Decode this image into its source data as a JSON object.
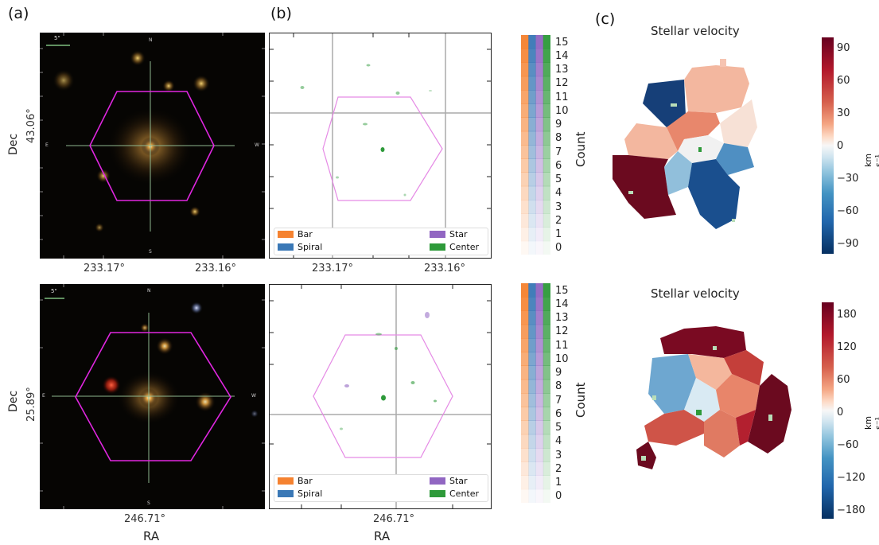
{
  "panel_labels": [
    "(a)",
    "(b)",
    "(c)"
  ],
  "rows": [
    {
      "dec_value": "43.06°",
      "sky_ra_ticks": [
        "233.17°",
        "233.16°"
      ],
      "zoo_ra_ticks": [
        "233.17°",
        "233.16°"
      ],
      "dir_labels": {
        "n": "N",
        "s": "S",
        "e": "E",
        "w": "W"
      },
      "scale_label": "5\"",
      "velocity_title": "Stellar velocity",
      "velocity_ticks": [
        "90",
        "60",
        "30",
        "0",
        "−30",
        "−60",
        "−90"
      ],
      "velocity_unit": "km s⁻¹"
    },
    {
      "dec_value": "25.89°",
      "sky_ra_ticks": [
        "246.71°"
      ],
      "zoo_ra_ticks": [
        "246.71°"
      ],
      "dir_labels": {
        "n": "N",
        "s": "S",
        "e": "E",
        "w": "W"
      },
      "scale_label": "5\"",
      "velocity_title": "Stellar velocity",
      "velocity_ticks": [
        "180",
        "120",
        "60",
        "0",
        "−60",
        "−120",
        "−180"
      ],
      "velocity_unit": "km s⁻¹"
    }
  ],
  "axis": {
    "dec_label": "Dec",
    "ra_label": "RA"
  },
  "legend": {
    "bar": "Bar",
    "spiral": "Spiral",
    "star": "Star",
    "center": "Center"
  },
  "count_colorbar": {
    "label": "Count",
    "ticks": [
      "15",
      "14",
      "13",
      "12",
      "11",
      "10",
      "9",
      "8",
      "7",
      "6",
      "5",
      "4",
      "3",
      "2",
      "1",
      "0"
    ]
  },
  "colors": {
    "hexagon": "#e026e0",
    "zoo_hexagon": "#e58ae5",
    "bar": "#f58230",
    "spiral": "#3a78b6",
    "star": "#9166c2",
    "center": "#2e9a3a",
    "vel_max": "#67001f",
    "vel_min": "#053061"
  }
}
